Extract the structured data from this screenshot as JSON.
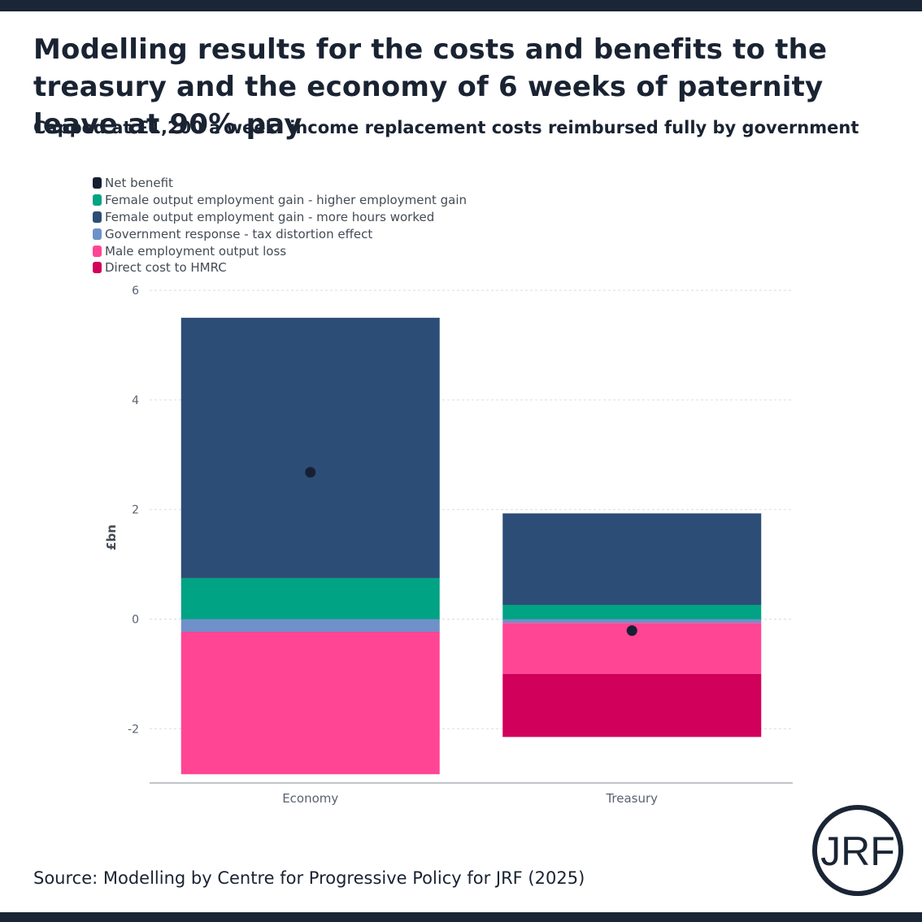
{
  "header": {
    "title": "Modelling results for the costs and benefits to the treasury and the economy of 6 weeks of paternity leave at 90% pay",
    "subtitle": "Capped at £1,200 a week: income replacement costs reimbursed fully by government"
  },
  "footer": {
    "source": "Source: Modelling by Centre for Progressive Policy for JRF (2025)",
    "logo_text": "JRF"
  },
  "colors": {
    "net_benefit": "#172033",
    "female_higher_employment": "#00a383",
    "female_more_hours": "#2c4d76",
    "gov_tax_distortion": "#6e91c9",
    "male_output_loss": "#ff4594",
    "direct_cost_hmrc": "#d1005a",
    "frame": "#1a2535"
  },
  "chart_data": {
    "type": "bar",
    "stacked": true,
    "categories": [
      "Economy",
      "Treasury"
    ],
    "ylabel": "£bn",
    "ylim": [
      -3,
      6
    ],
    "yticks": [
      6,
      4,
      2,
      0,
      -2
    ],
    "ytick_labels": [
      "6",
      "4",
      "2",
      "0",
      "-2"
    ],
    "grid": true,
    "legend_position": "top-left",
    "legend": [
      "Net benefit",
      "Female output employment gain - higher employment gain",
      "Female output employment gain - more hours worked",
      "Government response - tax distortion effect",
      "Male employment output loss",
      "Direct cost to HMRC"
    ],
    "series": [
      {
        "name": "Female output employment gain - higher employment gain",
        "color_key": "female_higher_employment",
        "values": [
          0.75,
          0.26
        ]
      },
      {
        "name": "Female output employment gain - more hours worked",
        "color_key": "female_more_hours",
        "values": [
          4.75,
          1.67
        ]
      },
      {
        "name": "Government response - tax distortion effect",
        "color_key": "gov_tax_distortion",
        "values": [
          -0.23,
          -0.07
        ]
      },
      {
        "name": "Male employment output loss",
        "color_key": "male_output_loss",
        "values": [
          -2.6,
          -0.93
        ]
      },
      {
        "name": "Direct cost to HMRC",
        "color_key": "direct_cost_hmrc",
        "values": [
          0,
          -1.15
        ]
      }
    ],
    "markers": {
      "name": "Net benefit",
      "color_key": "net_benefit",
      "values": [
        2.68,
        -0.21
      ]
    }
  }
}
